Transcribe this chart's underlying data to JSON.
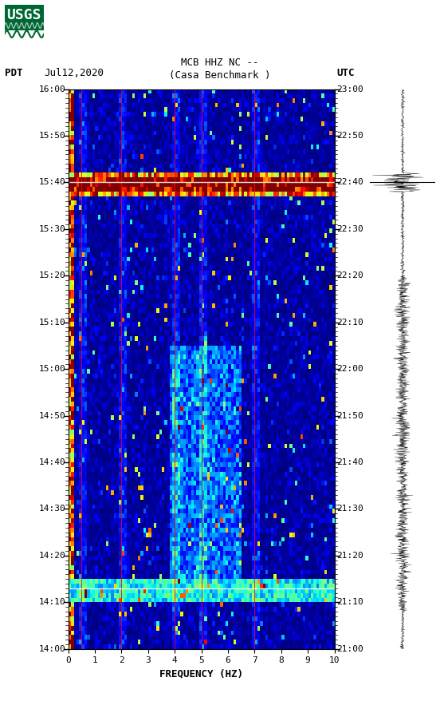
{
  "title_line1": "MCB HHZ NC --",
  "title_line2": "(Casa Benchmark )",
  "left_label": "PDT",
  "date_label": "Jul12,2020",
  "right_label": "UTC",
  "left_times": [
    "14:00",
    "14:10",
    "14:20",
    "14:30",
    "14:40",
    "14:50",
    "15:00",
    "15:10",
    "15:20",
    "15:30",
    "15:40",
    "15:50",
    "16:00"
  ],
  "right_times": [
    "21:00",
    "21:10",
    "21:20",
    "21:30",
    "21:40",
    "21:50",
    "22:00",
    "22:10",
    "22:20",
    "22:30",
    "22:40",
    "22:50",
    "23:00"
  ],
  "freq_min": 0,
  "freq_max": 10,
  "freq_ticks": [
    0,
    1,
    2,
    3,
    4,
    5,
    6,
    7,
    8,
    9,
    10
  ],
  "freq_label": "FREQUENCY (HZ)",
  "time_steps": 120,
  "freq_steps": 100,
  "bg_color": "white",
  "spectrogram_cmap": "jet",
  "seed": 42,
  "horizontal_lines_white": [
    20,
    107
  ],
  "vertical_lines_at_hz": [
    0.5,
    2.0,
    4.0,
    5.0,
    7.0
  ],
  "logo_color": "#006633",
  "usgs_text": "USGS"
}
